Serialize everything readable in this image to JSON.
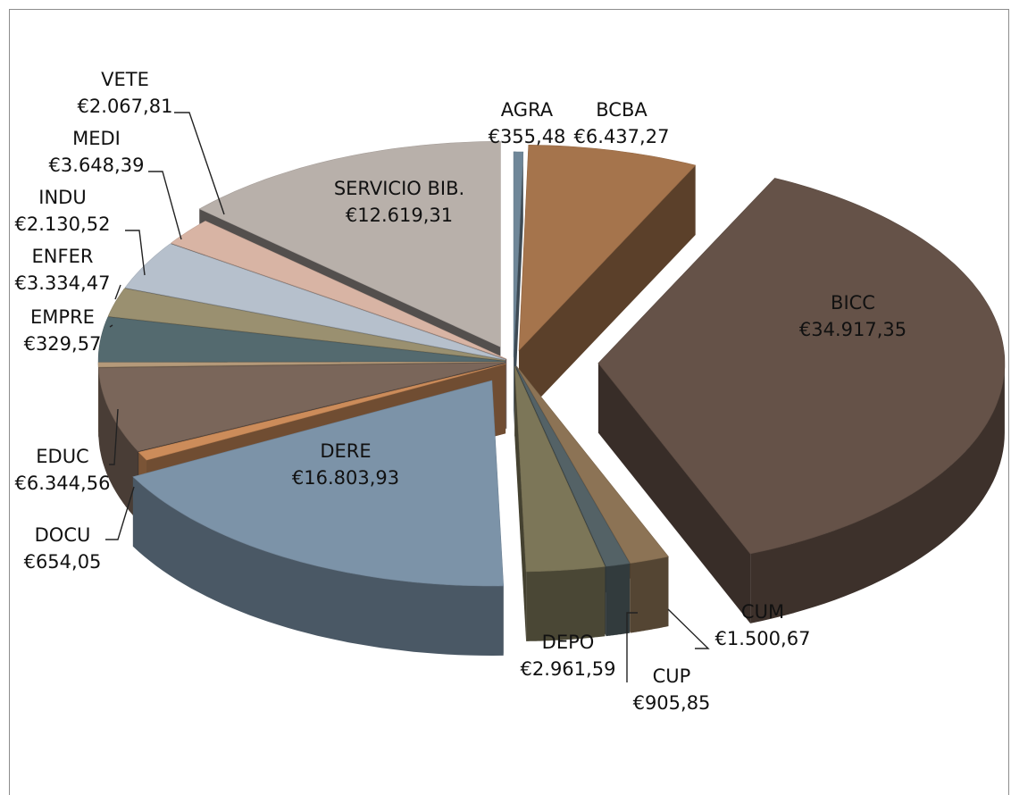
{
  "chart_data": {
    "type": "pie",
    "title": "",
    "style": "3d-exploded",
    "slices": [
      {
        "category": "AGRA",
        "label": "€355,48",
        "value": 355.48,
        "color": "#6f8799"
      },
      {
        "category": "BCBA",
        "label": "€6.437,27",
        "value": 6437.27,
        "color": "#a5744c"
      },
      {
        "category": "BICC",
        "label": "€34.917,35",
        "value": 34917.35,
        "color": "#655248"
      },
      {
        "category": "CUM",
        "label": "€1.500,67",
        "value": 1500.67,
        "color": "#8c7355"
      },
      {
        "category": "CUP",
        "label": "€905,85",
        "value": 905.85,
        "color": "#546266"
      },
      {
        "category": "DEPO",
        "label": "€2.961,59",
        "value": 2961.59,
        "color": "#7c7658"
      },
      {
        "category": "DERE",
        "label": "€16.803,93",
        "value": 16803.93,
        "color": "#7c93a8"
      },
      {
        "category": "DOCU",
        "label": "€654,05",
        "value": 654.05,
        "color": "#cc8c5a"
      },
      {
        "category": "EDUC",
        "label": "€6.344,56",
        "value": 6344.56,
        "color": "#7a665a"
      },
      {
        "category": "EMPRE",
        "label": "€329,57",
        "value": 329.57,
        "color": "#b59a7a"
      },
      {
        "category": "ENFER",
        "label": "€3.334,47",
        "value": 3334.47,
        "color": "#546a6f"
      },
      {
        "category": "INDU",
        "label": "€2.130,52",
        "value": 2130.52,
        "color": "#9a9070"
      },
      {
        "category": "MEDI",
        "label": "€3.648,39",
        "value": 3648.39,
        "color": "#b6c0cc"
      },
      {
        "category": "VETE",
        "label": "€2.067,81",
        "value": 2067.81,
        "color": "#d8b4a4"
      },
      {
        "category": "SERVICIO BIB.",
        "label": "€12.619,31",
        "value": 12619.31,
        "color": "#b8b0aa"
      }
    ]
  }
}
